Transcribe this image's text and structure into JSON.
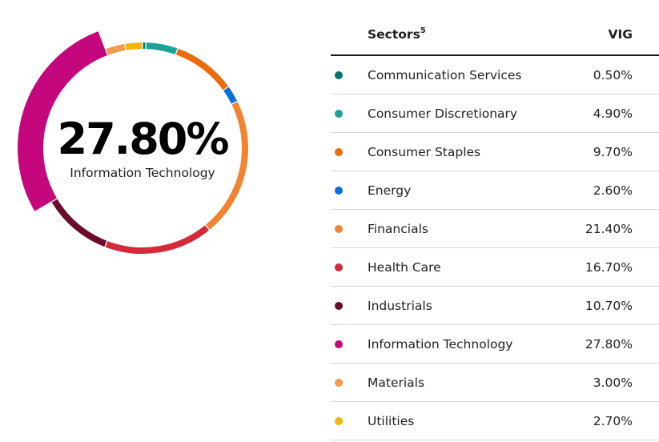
{
  "header": {
    "sector_label": "Sectors",
    "sector_footnote": "5",
    "fund_label": "VIG"
  },
  "highlight": {
    "value": "27.80%",
    "label": "Information Technology"
  },
  "sectors": [
    {
      "name": "Communication Services",
      "display": "0.50%",
      "color": "#00756c"
    },
    {
      "name": "Consumer Discretionary",
      "display": "4.90%",
      "color": "#1aa396"
    },
    {
      "name": "Consumer Staples",
      "display": "9.70%",
      "color": "#ec6c0b"
    },
    {
      "name": "Energy",
      "display": "2.60%",
      "color": "#0a6fdb"
    },
    {
      "name": "Financials",
      "display": "21.40%",
      "color": "#f28330"
    },
    {
      "name": "Health Care",
      "display": "16.70%",
      "color": "#d42a39"
    },
    {
      "name": "Industrials",
      "display": "10.70%",
      "color": "#6b0a2a"
    },
    {
      "name": "Information Technology",
      "display": "27.80%",
      "color": "#c5077e"
    },
    {
      "name": "Materials",
      "display": "3.00%",
      "color": "#f39a4f"
    },
    {
      "name": "Utilities",
      "display": "2.70%",
      "color": "#f6b40e"
    }
  ],
  "chart_data": {
    "type": "pie",
    "style": "donut",
    "title": "",
    "highlighted_category": "Information Technology",
    "categories": [
      "Communication Services",
      "Consumer Discretionary",
      "Consumer Staples",
      "Energy",
      "Financials",
      "Health Care",
      "Industrials",
      "Information Technology",
      "Materials",
      "Utilities"
    ],
    "values": [
      0.5,
      4.9,
      9.7,
      2.6,
      21.4,
      16.7,
      10.7,
      27.8,
      3.0,
      2.7
    ],
    "unit": "%"
  }
}
